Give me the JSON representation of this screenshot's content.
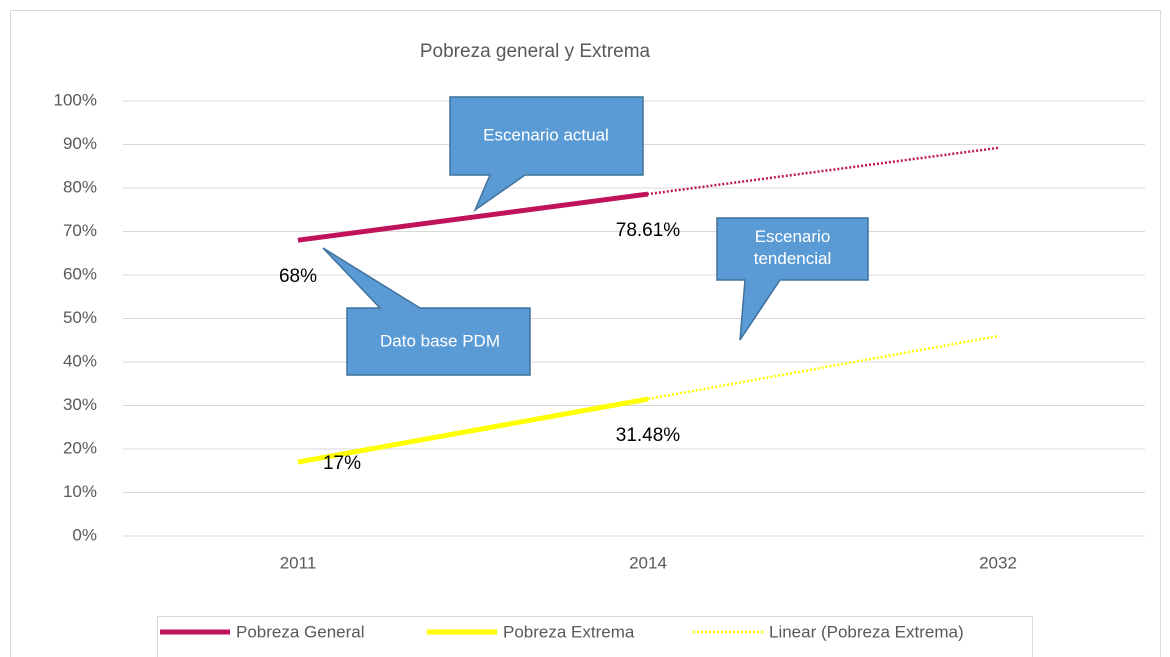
{
  "chart_data": {
    "type": "line",
    "title": "Pobreza general y Extrema",
    "categories": [
      "2011",
      "2014",
      "2032"
    ],
    "series": [
      {
        "name": "Pobreza General",
        "color": "#c0135a",
        "values": [
          68,
          78.61,
          null
        ],
        "value_labels": [
          "68%",
          "78.61%",
          null
        ]
      },
      {
        "name": "Pobreza Extrema",
        "color": "#ffff00",
        "values": [
          17,
          31.48,
          null
        ],
        "value_labels": [
          "17%",
          "31.48%",
          null
        ]
      }
    ],
    "trendlines": [
      {
        "color": "#c0135a",
        "values": [
          68,
          78.61,
          89.22
        ]
      },
      {
        "name": "Linear (Pobreza Extrema)",
        "color": "#ffff00",
        "values": [
          17,
          31.48,
          45.96
        ]
      }
    ],
    "ylim": [
      0,
      100
    ],
    "yticks": [
      {
        "value": 0,
        "label": "0%"
      },
      {
        "value": 10,
        "label": "10%"
      },
      {
        "value": 20,
        "label": "20%"
      },
      {
        "value": 30,
        "label": "30%"
      },
      {
        "value": 40,
        "label": "40%"
      },
      {
        "value": 50,
        "label": "50%"
      },
      {
        "value": 60,
        "label": "60%"
      },
      {
        "value": 70,
        "label": "70%"
      },
      {
        "value": 80,
        "label": "80%"
      },
      {
        "value": 90,
        "label": "90%"
      },
      {
        "value": 100,
        "label": "100%"
      }
    ],
    "grid": true,
    "annotations": [
      "Escenario actual",
      "Dato base PDM",
      "Escenario tendencial"
    ]
  }
}
